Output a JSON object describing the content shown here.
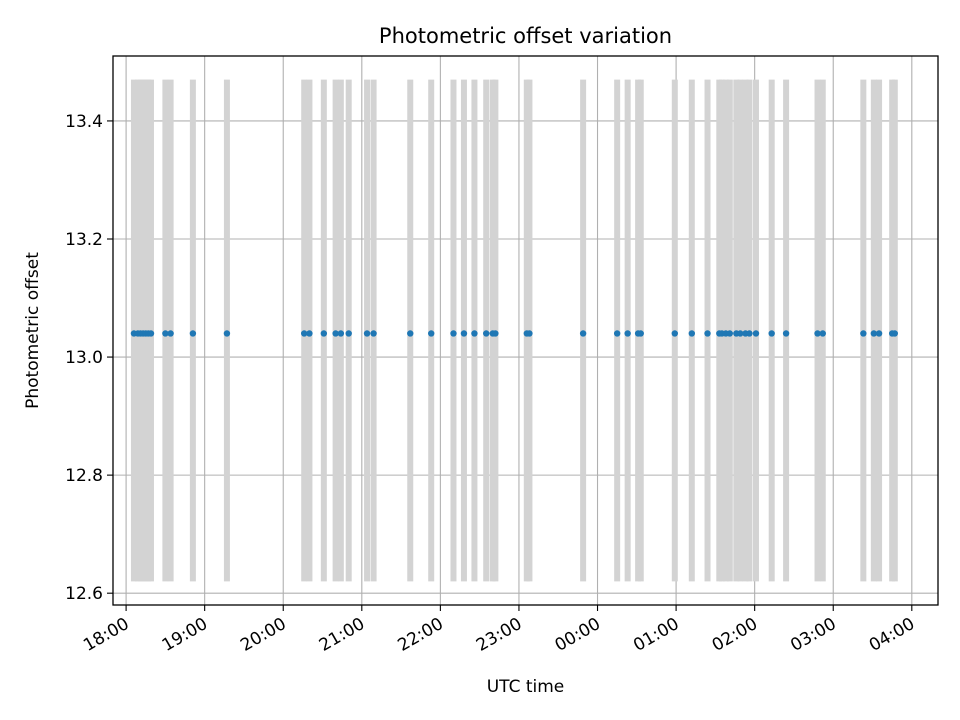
{
  "chart_data": {
    "type": "scatter",
    "title": "Photometric offset variation",
    "xlabel": "UTC time",
    "ylabel": "Photometric offset",
    "x_unit": "UTC time (hours, continuing past midnight)",
    "xlim": [
      "17:50",
      "28:20"
    ],
    "ylim": [
      12.58,
      13.51
    ],
    "grid": true,
    "x_ticks": [
      {
        "value": "18:00",
        "label": "18:00"
      },
      {
        "value": "19:00",
        "label": "19:00"
      },
      {
        "value": "20:00",
        "label": "20:00"
      },
      {
        "value": "21:00",
        "label": "21:00"
      },
      {
        "value": "22:00",
        "label": "22:00"
      },
      {
        "value": "23:00",
        "label": "23:00"
      },
      {
        "value": "24:00",
        "label": "00:00"
      },
      {
        "value": "25:00",
        "label": "01:00"
      },
      {
        "value": "26:00",
        "label": "02:00"
      },
      {
        "value": "27:00",
        "label": "03:00"
      },
      {
        "value": "28:00",
        "label": "04:00"
      }
    ],
    "y_ticks": [
      {
        "value": 12.6,
        "label": "12.6"
      },
      {
        "value": 12.8,
        "label": "12.8"
      },
      {
        "value": 13.0,
        "label": "13.0"
      },
      {
        "value": 13.2,
        "label": "13.2"
      },
      {
        "value": 13.4,
        "label": "13.4"
      }
    ],
    "error_bars": {
      "color": "#d3d3d3",
      "lower": 12.62,
      "upper": 13.47
    },
    "series": [
      {
        "color": "#1f77b4",
        "y": 13.04,
        "x": [
          "18:06",
          "18:09",
          "18:11",
          "18:13",
          "18:15",
          "18:17",
          "18:19",
          "18:30",
          "18:34",
          "18:51",
          "19:17",
          "20:16",
          "20:20",
          "20:31",
          "20:40",
          "20:44",
          "20:50",
          "21:04",
          "21:09",
          "21:37",
          "21:53",
          "22:10",
          "22:18",
          "22:26",
          "22:35",
          "22:40",
          "22:42",
          "23:06",
          "23:08",
          "23:49",
          "24:15",
          "24:23",
          "24:31",
          "24:33",
          "24:59",
          "25:12",
          "25:24",
          "25:33",
          "25:35",
          "25:38",
          "25:41",
          "25:46",
          "25:49",
          "25:53",
          "25:56",
          "26:01",
          "26:13",
          "26:24",
          "26:48",
          "26:52",
          "27:23",
          "27:31",
          "27:35",
          "27:45",
          "27:47"
        ]
      }
    ]
  }
}
